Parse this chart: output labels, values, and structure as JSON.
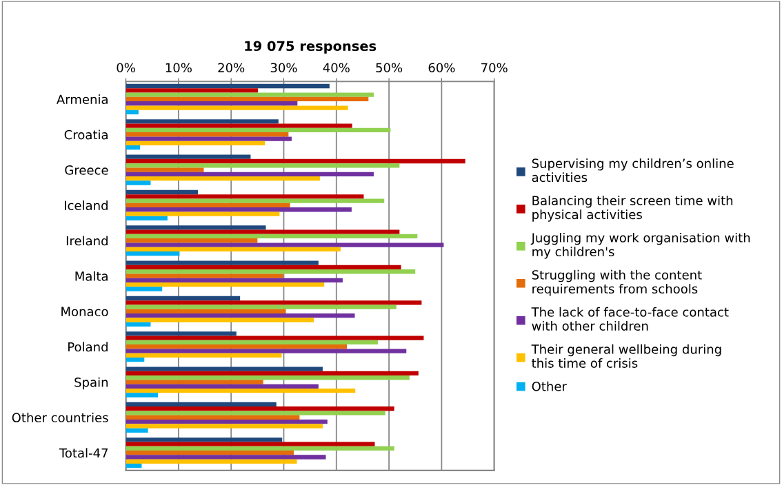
{
  "chart_data": {
    "type": "bar",
    "orientation": "horizontal",
    "title": "19 075 responses",
    "categories": [
      "Armenia",
      "Croatia",
      "Greece",
      "Iceland",
      "Ireland",
      "Malta",
      "Monaco",
      "Poland",
      "Spain",
      "Other countries",
      "Total-47"
    ],
    "series": [
      {
        "name": "Supervising my children’s online activities",
        "color": "#1f497d",
        "values": [
          38.7,
          29.0,
          23.7,
          13.7,
          26.6,
          36.6,
          21.7,
          21.0,
          37.4,
          28.6,
          29.7
        ]
      },
      {
        "name": "Balancing their screen time with physical activities",
        "color": "#c00000",
        "values": [
          25.1,
          43.0,
          64.5,
          45.2,
          52.0,
          52.3,
          56.2,
          56.6,
          55.6,
          51.0,
          47.3
        ]
      },
      {
        "name": "Juggling my work organisation with my children's",
        "color": "#92d050",
        "values": [
          47.1,
          50.3,
          52.0,
          49.1,
          55.4,
          55.0,
          51.4,
          47.9,
          53.9,
          49.3,
          51.0
        ]
      },
      {
        "name": "Struggling with the content requirements from schools",
        "color": "#e46c0a",
        "values": [
          46.1,
          30.9,
          14.8,
          31.2,
          25.0,
          29.9,
          30.4,
          42.0,
          26.1,
          33.0,
          31.9
        ]
      },
      {
        "name": "The lack of face-to-face contact with other children",
        "color": "#7030a0",
        "values": [
          32.6,
          31.5,
          47.1,
          42.9,
          60.4,
          41.2,
          43.5,
          53.3,
          36.6,
          38.3,
          38.0
        ]
      },
      {
        "name": "Their general wellbeing during this time of crisis",
        "color": "#ffc000",
        "values": [
          42.2,
          26.4,
          36.9,
          29.2,
          40.8,
          37.7,
          35.7,
          29.6,
          43.6,
          37.4,
          32.5
        ]
      },
      {
        "name": "Other",
        "color": "#00b0f0",
        "values": [
          2.4,
          2.7,
          4.7,
          7.9,
          10.2,
          6.9,
          4.7,
          3.5,
          6.1,
          4.2,
          3.0
        ]
      }
    ],
    "xlim": [
      0,
      70
    ],
    "xticks": [
      {
        "value": 0,
        "label": "0%"
      },
      {
        "value": 10,
        "label": "10%"
      },
      {
        "value": 20,
        "label": "20%"
      },
      {
        "value": 30,
        "label": "30%"
      },
      {
        "value": 40,
        "label": "40%"
      },
      {
        "value": 50,
        "label": "50%"
      },
      {
        "value": 60,
        "label": "60%"
      },
      {
        "value": 70,
        "label": "70%"
      }
    ],
    "grid": "x",
    "legend": "right"
  }
}
